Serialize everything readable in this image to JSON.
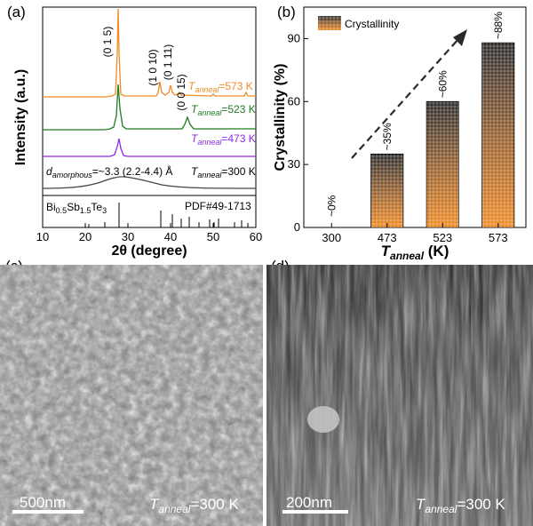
{
  "panels": {
    "a": {
      "label": "(a)",
      "ylabel": "Intensity (a.u.)",
      "xlabel": "2θ (degree)",
      "xticks": [
        "10",
        "20",
        "30",
        "40",
        "50",
        "60"
      ],
      "peaks": [
        "(0 1 5)",
        "(1 0 10)",
        "(0 1 11)",
        "(0 0 15)"
      ],
      "traces": [
        {
          "temp": "=573 K",
          "color": "#f08a24"
        },
        {
          "temp": "=523 K",
          "color": "#1f7a1f"
        },
        {
          "temp": "=473 K",
          "color": "#8a2be2"
        },
        {
          "temp": "=300 K",
          "color": "#333333"
        }
      ],
      "t_sym": "T",
      "t_sub": "anneal",
      "d_sym": "d",
      "d_sub": "amorphous",
      "d_value": "=~3.3 (2.2-4.4) Å",
      "ref_formula": {
        "el1": "Bi",
        "s1": "0.5",
        "el2": "Sb",
        "s2": "1.5",
        "el3": "Te",
        "s3": "3"
      },
      "ref_pdf": "PDF#49-1713"
    },
    "b": {
      "label": "(b)",
      "legend": "Crystallinity"
    },
    "c": {
      "label": "(c)",
      "scale": "500nm",
      "t_sym": "T",
      "t_sub": "anneal",
      "t_val": "=300 K"
    },
    "d": {
      "label": "(d)",
      "scale": "200nm",
      "t_sym": "T",
      "t_sub": "anneal",
      "t_val": "=300 K"
    }
  },
  "chart_data": {
    "type": "bar",
    "categories": [
      "300",
      "473",
      "523",
      "573"
    ],
    "values": [
      0,
      35,
      60,
      88
    ],
    "data_labels": [
      "~0%",
      "~35%",
      "~60%",
      "~88%"
    ],
    "ylabel": "Crystallinity (%)",
    "xlabel_sym": "T",
    "xlabel_sub": "anneal",
    "xlabel_unit": " (K)",
    "yticks": [
      "0",
      "30",
      "60",
      "90"
    ],
    "ylim": [
      0,
      105
    ],
    "legend": "Crystallinity",
    "legend_position": "top-left",
    "trend_arrow": true
  }
}
